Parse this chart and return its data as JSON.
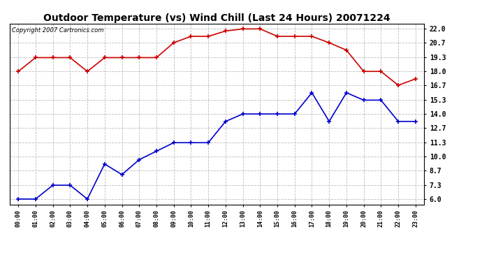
{
  "title": "Outdoor Temperature (vs) Wind Chill (Last 24 Hours) 20071224",
  "copyright": "Copyright 2007 Cartronics.com",
  "hours": [
    "00:00",
    "01:00",
    "02:00",
    "03:00",
    "04:00",
    "05:00",
    "06:00",
    "07:00",
    "08:00",
    "09:00",
    "10:00",
    "11:00",
    "12:00",
    "13:00",
    "14:00",
    "15:00",
    "16:00",
    "17:00",
    "18:00",
    "19:00",
    "20:00",
    "21:00",
    "22:00",
    "23:00"
  ],
  "temp": [
    18.0,
    19.3,
    19.3,
    19.3,
    18.0,
    19.3,
    19.3,
    19.3,
    19.3,
    20.7,
    21.3,
    21.3,
    21.8,
    22.0,
    22.0,
    21.3,
    21.3,
    21.3,
    20.7,
    20.0,
    18.0,
    18.0,
    16.7,
    17.3
  ],
  "windchill": [
    6.0,
    6.0,
    7.3,
    7.3,
    6.0,
    9.3,
    8.3,
    9.7,
    10.5,
    11.3,
    11.3,
    11.3,
    13.3,
    14.0,
    14.0,
    14.0,
    14.0,
    16.0,
    13.3,
    16.0,
    15.3,
    15.3,
    13.3,
    13.3
  ],
  "temp_color": "#cc0000",
  "windchill_color": "#0000cc",
  "yticks": [
    6.0,
    7.3,
    8.7,
    10.0,
    11.3,
    12.7,
    14.0,
    15.3,
    16.7,
    18.0,
    19.3,
    20.7,
    22.0
  ],
  "ylim": [
    5.5,
    22.5
  ],
  "bg_color": "#ffffff",
  "grid_color": "#bbbbbb",
  "marker": "+",
  "title_fontsize": 10,
  "copyright_fontsize": 6,
  "tick_fontsize": 6,
  "ytick_fontsize": 7
}
